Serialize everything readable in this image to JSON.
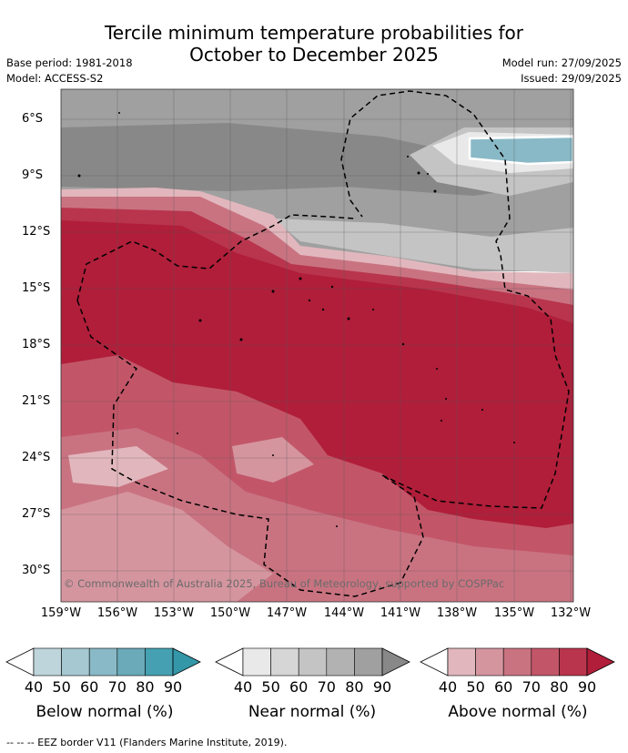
{
  "title": {
    "line1": "Tercile minimum temperature probabilities for",
    "line2": "October to December 2025"
  },
  "meta": {
    "base_period": "Base period: 1981-2018",
    "model": "Model: ACCESS-S2",
    "model_run": "Model run: 27/09/2025",
    "issued": "Issued: 29/09/2025"
  },
  "map": {
    "lat_labels": [
      "6°S",
      "9°S",
      "12°S",
      "15°S",
      "18°S",
      "21°S",
      "24°S",
      "27°S",
      "30°S"
    ],
    "lon_labels": [
      "159°W",
      "156°W",
      "153°W",
      "150°W",
      "147°W",
      "144°W",
      "141°W",
      "138°W",
      "135°W",
      "132°W"
    ],
    "copyright": "© Commonwealth of Australia 2025, Bureau of Meteorology, supported by COSPPac"
  },
  "legend": {
    "ticks": [
      "40",
      "50",
      "60",
      "70",
      "80",
      "90"
    ],
    "below": {
      "title": "Below normal (%)",
      "colors": [
        "#bed5dc",
        "#a5c8d1",
        "#89b9c6",
        "#6aaab9",
        "#45a1b2",
        "#3397a8"
      ]
    },
    "near": {
      "title": "Near normal (%)",
      "colors": [
        "#e9e9e9",
        "#d6d6d6",
        "#c4c4c4",
        "#b2b2b2",
        "#a0a0a0",
        "#888888"
      ]
    },
    "above": {
      "title": "Above normal (%)",
      "colors": [
        "#e1b7bd",
        "#d5959f",
        "#c97381",
        "#c25668",
        "#b8354d",
        "#b01e3a"
      ]
    }
  },
  "footer": "-- -- -- EEZ border V11 (Flanders Marine Institute, 2019)."
}
